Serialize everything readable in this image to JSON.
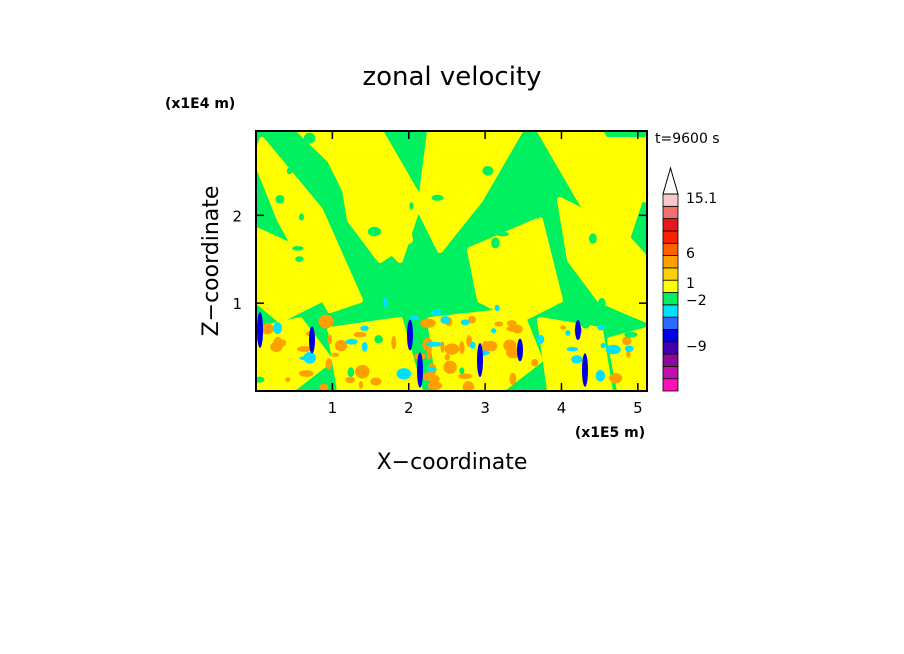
{
  "chart_data": {
    "type": "heatmap",
    "title": "zonal velocity",
    "xlabel": "X−coordinate",
    "ylabel": "Z−coordinate",
    "x_unit_label": "(x1E5 m)",
    "y_unit_label": "(x1E4 m)",
    "time_label": "t=9600 s",
    "xlim": [
      0.0,
      5.12
    ],
    "ylim": [
      0.0,
      2.96
    ],
    "x_ticks": [
      "1",
      "2",
      "3",
      "4",
      "5"
    ],
    "y_ticks": [
      "1",
      "2"
    ],
    "colorbar": {
      "levels": [
        {
          "color": "#ff10b8"
        },
        {
          "color": "#c010b0"
        },
        {
          "color": "#900898"
        },
        {
          "color": "#4000b0"
        },
        {
          "color": "#0000e0"
        },
        {
          "color": "#2a6aff"
        },
        {
          "color": "#00e0ff"
        },
        {
          "color": "#00f060"
        },
        {
          "color": "#ffff00"
        },
        {
          "color": "#ffd000"
        },
        {
          "color": "#ffa000"
        },
        {
          "color": "#ff6000"
        },
        {
          "color": "#ff2000"
        },
        {
          "color": "#e81818"
        },
        {
          "color": "#f07070"
        },
        {
          "color": "#f8c8c8"
        }
      ],
      "labels": [
        "15.1",
        "6",
        "1",
        "−2",
        "−9"
      ]
    },
    "dominant_colors": {
      "background_green": "#00f060",
      "yellow": "#ffff00",
      "orange": "#ffa000",
      "cyan": "#00e0ff",
      "blue": "#0000e0"
    }
  }
}
